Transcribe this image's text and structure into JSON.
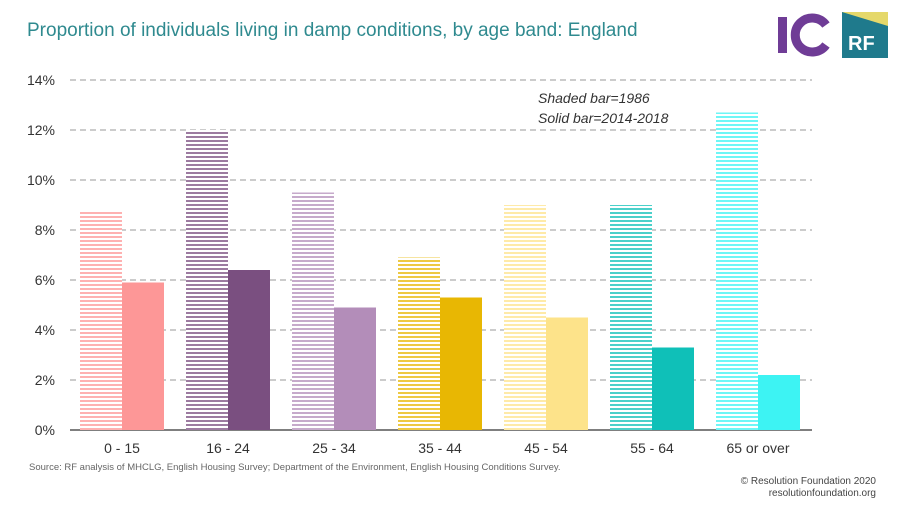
{
  "title": "Proportion of individuals living in damp conditions, by age band: England",
  "legend_note": {
    "line1": "Shaded bar=1986",
    "line2": "Solid bar=2014-2018"
  },
  "source": "Source: RF analysis of MHCLG, English Housing Survey; Department of the Environment, English Housing Conditions Survey.",
  "credit": {
    "line1": "© Resolution Foundation 2020",
    "line2": "resolutionfoundation.org"
  },
  "logos": {
    "ic": {
      "text": "IC",
      "color": "#6f3c96"
    },
    "rf": {
      "text": "RF",
      "color": "#1f7a8c",
      "accent": "#e5d86a"
    }
  },
  "chart_data": {
    "type": "bar",
    "categories": [
      "0 - 15",
      "16 - 24",
      "25 - 34",
      "35 - 44",
      "45 - 54",
      "55 - 64",
      "65 or over"
    ],
    "series": [
      {
        "values": [
          8.8,
          12.0,
          9.5,
          6.9,
          9.0,
          9.0,
          12.7
        ]
      },
      {
        "values": [
          5.9,
          6.4,
          4.9,
          5.3,
          4.5,
          3.3,
          2.2
        ]
      }
    ],
    "colors": [
      "#fd9797",
      "#7a4f80",
      "#b38db9",
      "#e8b703",
      "#fde38a",
      "#0fc0b8",
      "#3df3f3"
    ],
    "yticks": [
      "0%",
      "2%",
      "4%",
      "6%",
      "8%",
      "10%",
      "12%",
      "14%"
    ],
    "ylim": [
      0,
      14
    ],
    "grid": true,
    "grid_style": "dashed"
  }
}
